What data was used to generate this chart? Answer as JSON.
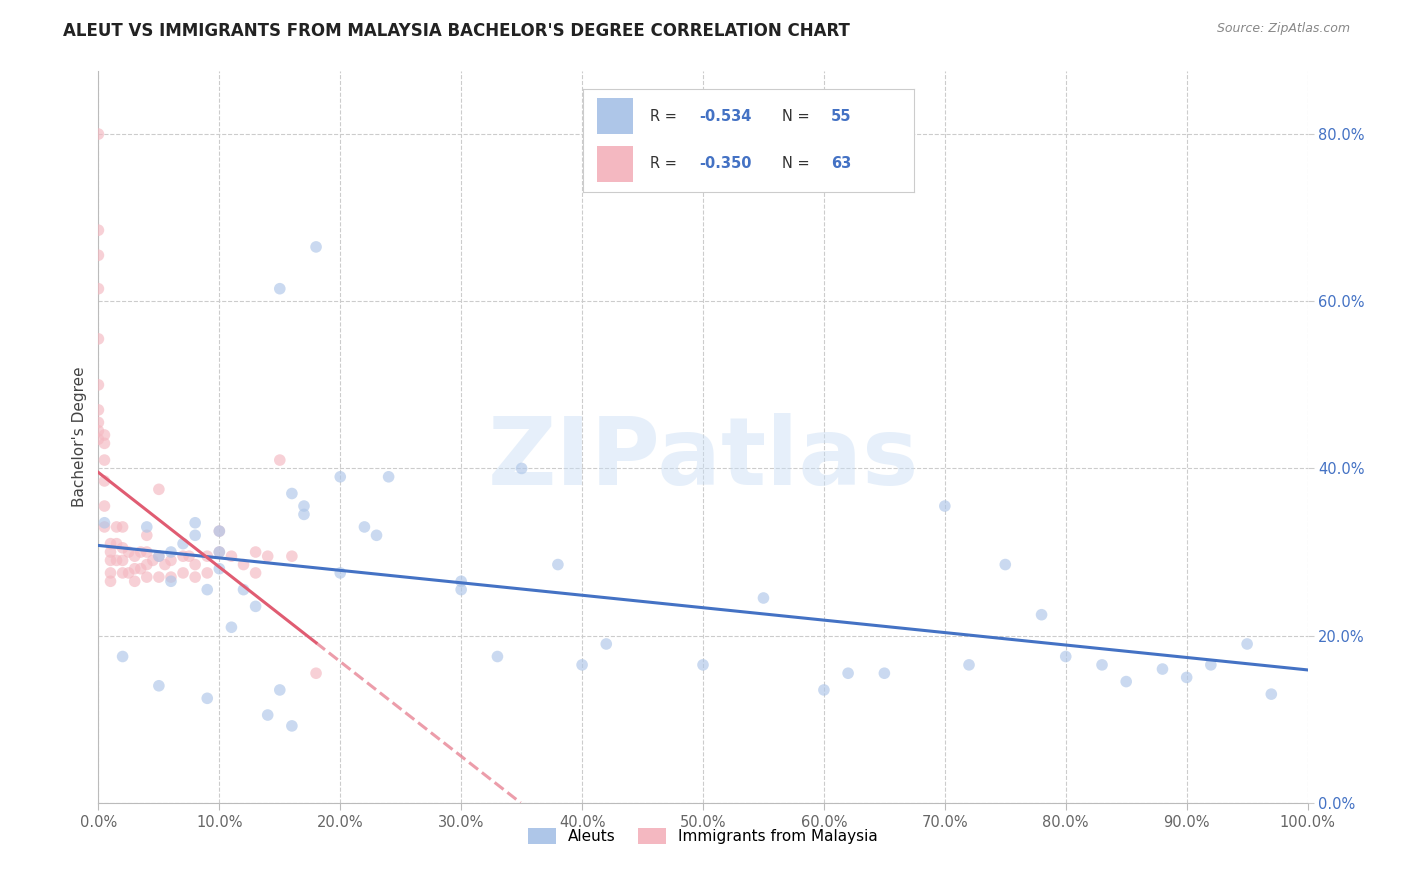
{
  "title": "ALEUT VS IMMIGRANTS FROM MALAYSIA BACHELOR'S DEGREE CORRELATION CHART",
  "source": "Source: ZipAtlas.com",
  "ylabel": "Bachelor's Degree",
  "watermark": "ZIPatlas",
  "xlim": [
    0.0,
    1.0
  ],
  "ylim": [
    0.0,
    0.875
  ],
  "xticks": [
    0.0,
    0.1,
    0.2,
    0.3,
    0.4,
    0.5,
    0.6,
    0.7,
    0.8,
    0.9,
    1.0
  ],
  "yticks_right": [
    0.0,
    0.2,
    0.4,
    0.6,
    0.8
  ],
  "yticklabels_right": [
    "0.0%",
    "20.0%",
    "40.0%",
    "60.0%",
    "80.0%"
  ],
  "legend_labels": [
    "Aleuts",
    "Immigrants from Malaysia"
  ],
  "aleuts_R": -0.534,
  "aleuts_N": 55,
  "malaysia_R": -0.35,
  "malaysia_N": 63,
  "aleuts_color": "#aec6e8",
  "malaysia_color": "#f4b8c1",
  "trendline_aleuts_color": "#4472c4",
  "trendline_malaysia_color": "#e05c72",
  "aleuts_x": [
    0.005,
    0.02,
    0.04,
    0.05,
    0.05,
    0.06,
    0.06,
    0.07,
    0.08,
    0.08,
    0.09,
    0.09,
    0.1,
    0.1,
    0.1,
    0.11,
    0.12,
    0.13,
    0.14,
    0.15,
    0.15,
    0.16,
    0.16,
    0.17,
    0.17,
    0.18,
    0.2,
    0.2,
    0.22,
    0.23,
    0.24,
    0.3,
    0.3,
    0.33,
    0.35,
    0.38,
    0.4,
    0.42,
    0.5,
    0.55,
    0.6,
    0.62,
    0.65,
    0.7,
    0.72,
    0.75,
    0.78,
    0.8,
    0.83,
    0.85,
    0.88,
    0.9,
    0.92,
    0.95,
    0.97
  ],
  "aleuts_y": [
    0.335,
    0.175,
    0.33,
    0.295,
    0.14,
    0.265,
    0.3,
    0.31,
    0.335,
    0.32,
    0.255,
    0.125,
    0.325,
    0.28,
    0.3,
    0.21,
    0.255,
    0.235,
    0.105,
    0.135,
    0.615,
    0.092,
    0.37,
    0.355,
    0.345,
    0.665,
    0.39,
    0.275,
    0.33,
    0.32,
    0.39,
    0.265,
    0.255,
    0.175,
    0.4,
    0.285,
    0.165,
    0.19,
    0.165,
    0.245,
    0.135,
    0.155,
    0.155,
    0.355,
    0.165,
    0.285,
    0.225,
    0.175,
    0.165,
    0.145,
    0.16,
    0.15,
    0.165,
    0.19,
    0.13
  ],
  "malaysia_x": [
    0.0,
    0.0,
    0.0,
    0.0,
    0.0,
    0.0,
    0.0,
    0.0,
    0.0,
    0.0,
    0.005,
    0.005,
    0.005,
    0.005,
    0.005,
    0.005,
    0.01,
    0.01,
    0.01,
    0.01,
    0.01,
    0.015,
    0.015,
    0.015,
    0.02,
    0.02,
    0.02,
    0.02,
    0.025,
    0.025,
    0.03,
    0.03,
    0.03,
    0.035,
    0.035,
    0.04,
    0.04,
    0.04,
    0.04,
    0.045,
    0.05,
    0.05,
    0.05,
    0.055,
    0.06,
    0.06,
    0.07,
    0.07,
    0.075,
    0.08,
    0.08,
    0.09,
    0.09,
    0.1,
    0.1,
    0.11,
    0.12,
    0.13,
    0.13,
    0.14,
    0.15,
    0.16,
    0.18
  ],
  "malaysia_y": [
    0.8,
    0.685,
    0.655,
    0.615,
    0.555,
    0.5,
    0.47,
    0.455,
    0.445,
    0.435,
    0.44,
    0.43,
    0.41,
    0.385,
    0.355,
    0.33,
    0.31,
    0.3,
    0.29,
    0.275,
    0.265,
    0.33,
    0.31,
    0.29,
    0.33,
    0.305,
    0.29,
    0.275,
    0.3,
    0.275,
    0.295,
    0.28,
    0.265,
    0.3,
    0.28,
    0.32,
    0.3,
    0.285,
    0.27,
    0.29,
    0.375,
    0.295,
    0.27,
    0.285,
    0.29,
    0.27,
    0.295,
    0.275,
    0.295,
    0.285,
    0.27,
    0.295,
    0.275,
    0.325,
    0.3,
    0.295,
    0.285,
    0.3,
    0.275,
    0.295,
    0.41,
    0.295,
    0.155
  ],
  "background_color": "#ffffff",
  "grid_color": "#cccccc",
  "title_fontsize": 12,
  "axis_label_fontsize": 11,
  "tick_fontsize": 10.5,
  "marker_size": 70,
  "marker_alpha": 0.65,
  "trendline_linewidth": 2.2
}
